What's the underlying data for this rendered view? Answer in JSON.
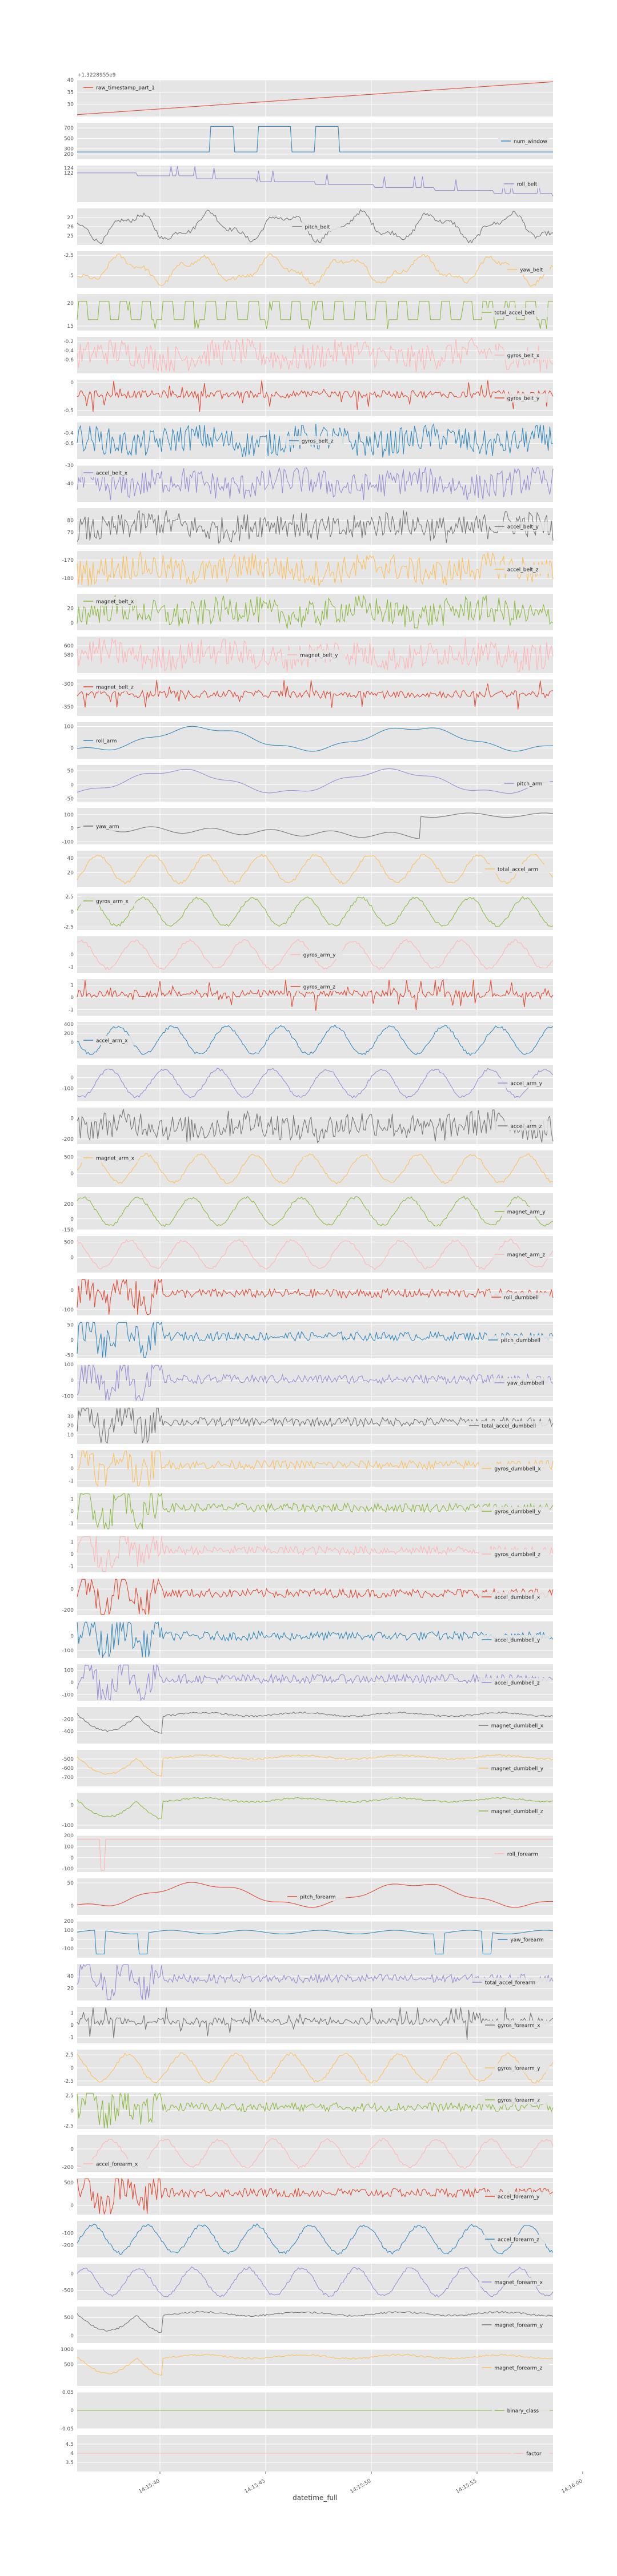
{
  "chart_data": {
    "type": "line",
    "layout": "stacked-subplots",
    "xlabel": "datetime_full",
    "x_ticks": [
      "14:15:40",
      "14:15:45",
      "14:15:50",
      "14:15:55",
      "14:16:00"
    ],
    "x_offset_label": "+1.3228955e9",
    "grid": true,
    "legend_placement": "auto",
    "colors": [
      "#E24A33",
      "#348ABD",
      "#988ED5",
      "#777777",
      "#FBC15E",
      "#8EBA42",
      "#FFB5B8"
    ],
    "series": [
      {
        "name": "raw_timestamp_part_1",
        "pattern": "ramp",
        "min": 25,
        "max": 40,
        "yticks": [
          40,
          35,
          30
        ],
        "legend": "tl"
      },
      {
        "name": "num_window",
        "pattern": "steps",
        "min": 100,
        "max": 800,
        "yticks": [
          700,
          500,
          300,
          200
        ],
        "legend": "r"
      },
      {
        "name": "roll_belt",
        "pattern": "stepsdown",
        "min": 110,
        "max": 125,
        "yticks": [
          124,
          122
        ],
        "legend": "r"
      },
      {
        "name": "pitch_belt",
        "pattern": "wave",
        "min": 24,
        "max": 28,
        "yticks": [
          25,
          26,
          27
        ],
        "legend": "c"
      },
      {
        "name": "yaw_belt",
        "pattern": "wave",
        "min": -6.5,
        "max": -2,
        "yticks": [
          -2.5,
          -5.0
        ],
        "legend": "r"
      },
      {
        "name": "total_accel_belt",
        "pattern": "square",
        "min": 14,
        "max": 22,
        "yticks": [
          20,
          15
        ],
        "legend": "r"
      },
      {
        "name": "gyros_belt_x",
        "pattern": "noise",
        "min": -0.9,
        "max": -0.1,
        "yticks": [
          -0.2,
          -0.4,
          -0.6
        ],
        "legend": "r"
      },
      {
        "name": "gyros_belt_y",
        "pattern": "spiky",
        "min": -0.6,
        "max": 0.05,
        "yticks": [
          0.0,
          -0.5
        ],
        "legend": "r"
      },
      {
        "name": "gyros_belt_z",
        "pattern": "noise",
        "min": -0.9,
        "max": -0.2,
        "yticks": [
          -0.4,
          -0.6
        ],
        "legend": "c"
      },
      {
        "name": "accel_belt_x",
        "pattern": "noise",
        "min": -50,
        "max": -30,
        "yticks": [
          -30,
          -40
        ],
        "legend": "tl"
      },
      {
        "name": "accel_belt_y",
        "pattern": "noise",
        "min": 60,
        "max": 90,
        "yticks": [
          70,
          80
        ],
        "legend": "r"
      },
      {
        "name": "accel_belt_z",
        "pattern": "noise",
        "min": -185,
        "max": -165,
        "yticks": [
          -170,
          -180
        ],
        "legend": "r"
      },
      {
        "name": "magnet_belt_x",
        "pattern": "noise",
        "min": -10,
        "max": 40,
        "yticks": [
          20,
          0
        ],
        "legend": "tl"
      },
      {
        "name": "magnet_belt_y",
        "pattern": "noise",
        "min": 540,
        "max": 620,
        "yticks": [
          600,
          580
        ],
        "legend": "c"
      },
      {
        "name": "magnet_belt_z",
        "pattern": "spiky",
        "min": -370,
        "max": -290,
        "yticks": [
          -300,
          -350
        ],
        "legend": "tl"
      },
      {
        "name": "roll_arm",
        "pattern": "smooth",
        "min": -50,
        "max": 120,
        "yticks": [
          100,
          0
        ],
        "legend": "l"
      },
      {
        "name": "pitch_arm",
        "pattern": "smooth",
        "min": -60,
        "max": 70,
        "yticks": [
          50,
          0,
          -50
        ],
        "legend": "r"
      },
      {
        "name": "yaw_arm",
        "pattern": "jump",
        "min": -120,
        "max": 150,
        "yticks": [
          100,
          0,
          -100
        ],
        "legend": "l"
      },
      {
        "name": "total_accel_arm",
        "pattern": "periodic",
        "min": 0,
        "max": 50,
        "yticks": [
          40,
          20
        ],
        "legend": "r"
      },
      {
        "name": "gyros_arm_x",
        "pattern": "periodic",
        "min": -3,
        "max": 3,
        "yticks": [
          2.5,
          0.0,
          -2.5
        ],
        "legend": "tl"
      },
      {
        "name": "gyros_arm_y",
        "pattern": "periodic",
        "min": -1.5,
        "max": 1.5,
        "yticks": [
          0,
          -1
        ],
        "legend": "c"
      },
      {
        "name": "gyros_arm_z",
        "pattern": "spiky",
        "min": -1.5,
        "max": 1.5,
        "yticks": [
          1,
          0,
          -1
        ],
        "legend": "tc"
      },
      {
        "name": "accel_arm_x",
        "pattern": "periodic",
        "min": -350,
        "max": 450,
        "yticks": [
          400,
          200,
          0
        ],
        "legend": "l"
      },
      {
        "name": "accel_arm_y",
        "pattern": "periodic",
        "min": -220,
        "max": 120,
        "yticks": [
          0,
          -100
        ],
        "legend": "r"
      },
      {
        "name": "accel_arm_z",
        "pattern": "noise",
        "min": -250,
        "max": 100,
        "yticks": [
          0,
          -200
        ],
        "legend": "r"
      },
      {
        "name": "magnet_arm_x",
        "pattern": "periodic",
        "min": -400,
        "max": 700,
        "yticks": [
          500,
          0
        ],
        "legend": "tl"
      },
      {
        "name": "magnet_arm_y",
        "pattern": "periodic",
        "min": -150,
        "max": 350,
        "yticks": [
          200,
          0,
          -150
        ],
        "legend": "r"
      },
      {
        "name": "magnet_arm_z",
        "pattern": "periodic",
        "min": -500,
        "max": 700,
        "yticks": [
          500,
          0
        ],
        "legend": "r"
      },
      {
        "name": "roll_dumbbell",
        "pattern": "decay",
        "min": -130,
        "max": 60,
        "yticks": [
          0,
          -100
        ],
        "legend": "r"
      },
      {
        "name": "pitch_dumbbell",
        "pattern": "decay",
        "min": -60,
        "max": 60,
        "yticks": [
          50,
          0,
          -50
        ],
        "legend": "r"
      },
      {
        "name": "yaw_dumbbell",
        "pattern": "decay",
        "min": -130,
        "max": 100,
        "yticks": [
          100,
          0,
          -100
        ],
        "legend": "r"
      },
      {
        "name": "total_accel_dumbbell",
        "pattern": "decay",
        "min": 0,
        "max": 40,
        "yticks": [
          30,
          20,
          10
        ],
        "legend": "r"
      },
      {
        "name": "gyros_dumbbell_x",
        "pattern": "decay",
        "min": -1.5,
        "max": 1.5,
        "yticks": [
          1,
          0,
          -1
        ],
        "legend": "r"
      },
      {
        "name": "gyros_dumbbell_y",
        "pattern": "decay",
        "min": -1.5,
        "max": 1.5,
        "yticks": [
          1,
          0,
          -1
        ],
        "legend": "r"
      },
      {
        "name": "gyros_dumbbell_z",
        "pattern": "decay",
        "min": -1.5,
        "max": 1.5,
        "yticks": [
          1,
          0,
          -1
        ],
        "legend": "r"
      },
      {
        "name": "accel_dumbbell_x",
        "pattern": "decay",
        "min": -250,
        "max": 100,
        "yticks": [
          0,
          -200
        ],
        "legend": "r"
      },
      {
        "name": "accel_dumbbell_y",
        "pattern": "decay",
        "min": -150,
        "max": 100,
        "yticks": [
          0,
          -100
        ],
        "legend": "r"
      },
      {
        "name": "accel_dumbbell_z",
        "pattern": "decay",
        "min": -150,
        "max": 150,
        "yticks": [
          100,
          0,
          -100
        ],
        "legend": "r"
      },
      {
        "name": "magnet_dumbbell_x",
        "pattern": "dip",
        "min": -600,
        "max": 0,
        "yticks": [
          -200,
          -400
        ],
        "legend": "r"
      },
      {
        "name": "magnet_dumbbell_y",
        "pattern": "dip",
        "min": -800,
        "max": -400,
        "yticks": [
          -500,
          -600,
          -700
        ],
        "legend": "r"
      },
      {
        "name": "magnet_dumbbell_z",
        "pattern": "dip",
        "min": -120,
        "max": 60,
        "yticks": [
          0,
          -100
        ],
        "legend": "r"
      },
      {
        "name": "roll_forearm",
        "pattern": "flatspike",
        "min": -130,
        "max": 200,
        "yticks": [
          200,
          100,
          0,
          -100
        ],
        "legend": "r"
      },
      {
        "name": "pitch_forearm",
        "pattern": "smooth",
        "min": -20,
        "max": 60,
        "yticks": [
          50,
          0
        ],
        "legend": "c"
      },
      {
        "name": "yaw_forearm",
        "pattern": "flatspike2",
        "min": -200,
        "max": 200,
        "yticks": [
          200,
          100,
          0,
          -100
        ],
        "legend": "r"
      },
      {
        "name": "total_accel_forearm",
        "pattern": "decay",
        "min": 0,
        "max": 60,
        "yticks": [
          40,
          20
        ],
        "legend": "r"
      },
      {
        "name": "gyros_forearm_x",
        "pattern": "spiky",
        "min": -1.5,
        "max": 1.5,
        "yticks": [
          1,
          0,
          -1
        ],
        "legend": "r"
      },
      {
        "name": "gyros_forearm_y",
        "pattern": "periodic",
        "min": -3.5,
        "max": 3.5,
        "yticks": [
          2.5,
          0.0,
          -2.5
        ],
        "legend": "r"
      },
      {
        "name": "gyros_forearm_z",
        "pattern": "decay",
        "min": -3,
        "max": 3,
        "yticks": [
          2.5,
          0.0,
          -2.5
        ],
        "legend": "tr"
      },
      {
        "name": "accel_forearm_x",
        "pattern": "periodic",
        "min": -250,
        "max": 150,
        "yticks": [
          0,
          -200
        ],
        "legend": "bl"
      },
      {
        "name": "accel_forearm_y",
        "pattern": "decay",
        "min": -200,
        "max": 600,
        "yticks": [
          500,
          0
        ],
        "legend": "r"
      },
      {
        "name": "accel_forearm_z",
        "pattern": "periodic",
        "min": -300,
        "max": 0,
        "yticks": [
          -100,
          -200
        ],
        "legend": "r"
      },
      {
        "name": "magnet_forearm_x",
        "pattern": "periodic",
        "min": -800,
        "max": 300,
        "yticks": [
          0,
          -500
        ],
        "legend": "r"
      },
      {
        "name": "magnet_forearm_y",
        "pattern": "dip",
        "min": -200,
        "max": 800,
        "yticks": [
          500,
          0
        ],
        "legend": "r"
      },
      {
        "name": "magnet_forearm_z",
        "pattern": "dip",
        "min": -200,
        "max": 1000,
        "yticks": [
          1000,
          500
        ],
        "legend": "r"
      },
      {
        "name": "binary_class",
        "pattern": "flat",
        "value": 0,
        "min": -0.05,
        "max": 0.05,
        "yticks": [
          0.05,
          0.0,
          -0.05
        ],
        "legend": "r"
      },
      {
        "name": "factor",
        "pattern": "flat",
        "value": 4,
        "min": 3,
        "max": 5,
        "yticks": [
          4.5,
          4.0,
          3.5
        ],
        "legend": "r"
      }
    ]
  }
}
